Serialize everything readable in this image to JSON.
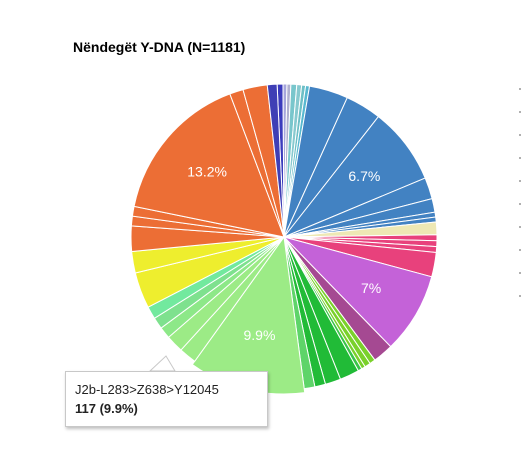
{
  "chart_data": {
    "type": "pie",
    "title": "Nëndegët Y-DNA (N=1181)",
    "total": 1181,
    "slice_labels_shown": [
      "13.2%",
      "6.7%",
      "7%",
      "9.9%"
    ],
    "slices": [
      {
        "value": 6,
        "color": "#3b3bbd"
      },
      {
        "value": 4,
        "color": "#a6a6dc"
      },
      {
        "value": 4,
        "color": "#b0b0d0"
      },
      {
        "value": 6,
        "color": "#78c6cc"
      },
      {
        "value": 5,
        "color": "#86c9cf"
      },
      {
        "value": 4,
        "color": "#6dbfc6"
      },
      {
        "value": 4,
        "color": "#57b8d0"
      },
      {
        "value": 40,
        "color": "#4282c2"
      },
      {
        "value": 37,
        "color": "#4282c2"
      },
      {
        "value": 79,
        "color": "#4282c2",
        "label": "6.7%"
      },
      {
        "value": 22,
        "color": "#4282c2"
      },
      {
        "value": 14,
        "color": "#4282c2"
      },
      {
        "value": 5,
        "color": "#4282c2"
      },
      {
        "value": 5,
        "color": "#4282c2"
      },
      {
        "value": 13,
        "color": "#eee8b4"
      },
      {
        "value": 6,
        "color": "#e8417c"
      },
      {
        "value": 6,
        "color": "#e8417c"
      },
      {
        "value": 6,
        "color": "#e8417c"
      },
      {
        "value": 25,
        "color": "#e8417c"
      },
      {
        "value": 83,
        "color": "#c462d8",
        "label": "7%"
      },
      {
        "value": 21,
        "color": "#a54992"
      },
      {
        "value": 6,
        "color": "#7ad12b"
      },
      {
        "value": 6,
        "color": "#7ad12b"
      },
      {
        "value": 4,
        "color": "#7ad12b"
      },
      {
        "value": 4,
        "color": "#39c449"
      },
      {
        "value": 20,
        "color": "#21bb37"
      },
      {
        "value": 16,
        "color": "#21bb37"
      },
      {
        "value": 11,
        "color": "#21bb37"
      },
      {
        "value": 11,
        "color": "#5ed469"
      },
      {
        "value": 117,
        "color": "#9ceb86",
        "label": "9.9%",
        "highlighted": true
      },
      {
        "value": 18,
        "color": "#9ceb86"
      },
      {
        "value": 18,
        "color": "#9ceb86"
      },
      {
        "value": 12,
        "color": "#8de888"
      },
      {
        "value": 12,
        "color": "#7ee18e"
      },
      {
        "value": 13,
        "color": "#72e99e"
      },
      {
        "value": 37,
        "color": "#eeee2e"
      },
      {
        "value": 22,
        "color": "#eeee2e"
      },
      {
        "value": 26,
        "color": "#ec6e35"
      },
      {
        "value": 10,
        "color": "#ec6e35"
      },
      {
        "value": 10,
        "color": "#ec6e35"
      },
      {
        "value": 156,
        "color": "#ec6e35",
        "label": "13.2%"
      },
      {
        "value": 14,
        "color": "#ec6e35"
      },
      {
        "value": 25,
        "color": "#ec6e35"
      },
      {
        "value": 10,
        "color": "#3f3fb5"
      }
    ]
  },
  "tooltip": {
    "name": "J2b-L283>Z638>Y12045",
    "value": "117 (9.9%)"
  }
}
